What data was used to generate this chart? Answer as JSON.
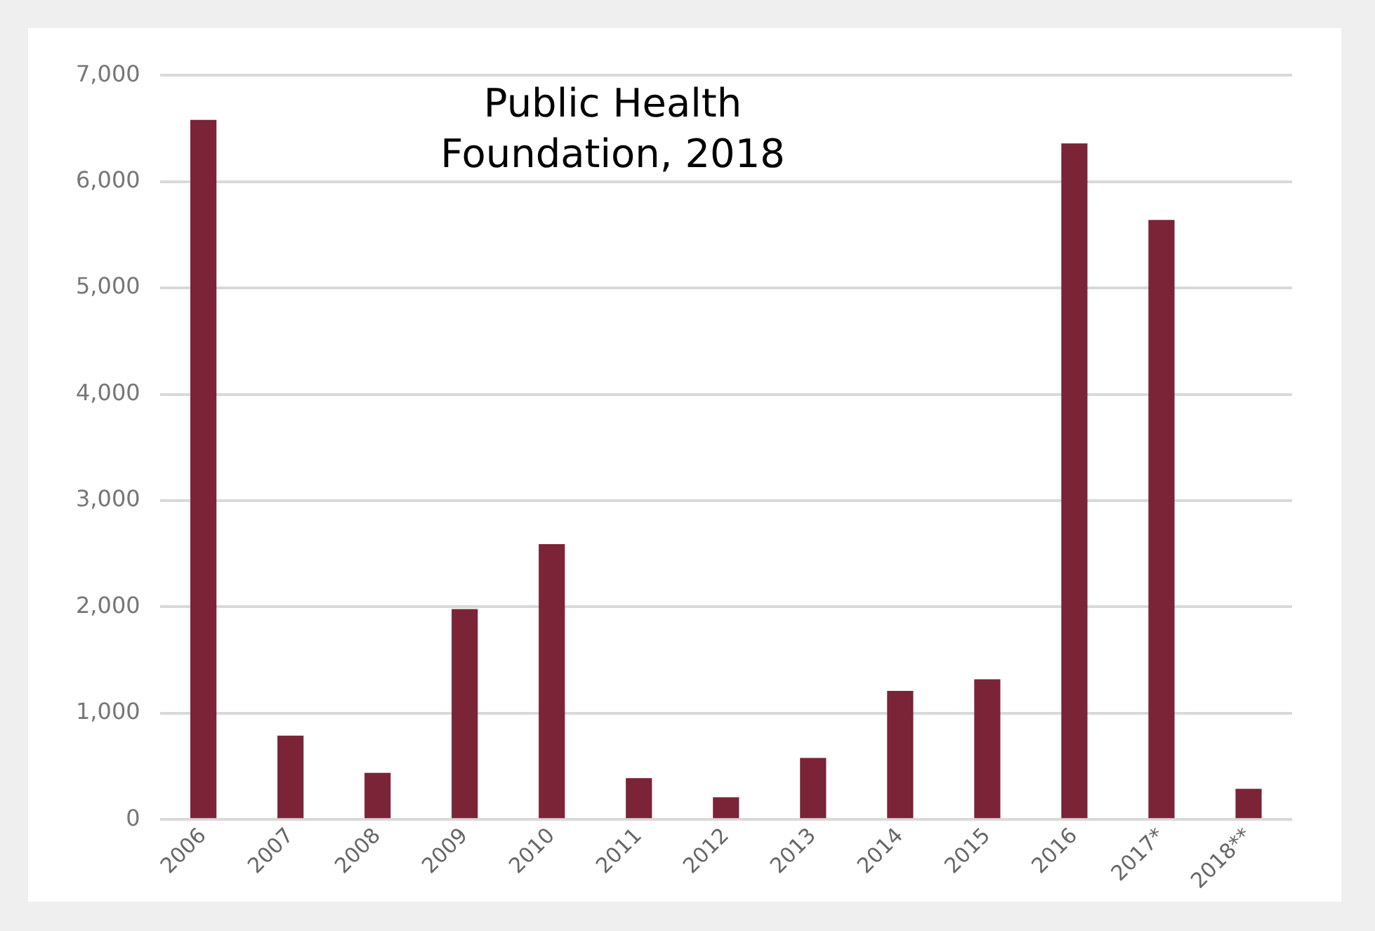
{
  "chart_data": {
    "type": "bar",
    "categories": [
      "2006",
      "2007",
      "2008",
      "2009",
      "2010",
      "2011",
      "2012",
      "2013",
      "2014",
      "2015",
      "2016",
      "2017*",
      "2018**"
    ],
    "values": [
      6580,
      790,
      440,
      1980,
      2590,
      390,
      210,
      580,
      1210,
      1320,
      6360,
      5640,
      290
    ],
    "color": "#7b2337",
    "ylim": [
      0,
      7000
    ],
    "yticks": [
      {
        "value": 0,
        "label": "0"
      },
      {
        "value": 1000,
        "label": "1,000"
      },
      {
        "value": 2000,
        "label": "2,000"
      },
      {
        "value": 3000,
        "label": "3,000"
      },
      {
        "value": 4000,
        "label": "4,000"
      },
      {
        "value": 5000,
        "label": "5,000"
      },
      {
        "value": 6000,
        "label": "6,000"
      },
      {
        "value": 7000,
        "label": "7,000"
      }
    ],
    "grid": "y",
    "annotations": [
      "Public Health Foundation, 2018"
    ]
  }
}
